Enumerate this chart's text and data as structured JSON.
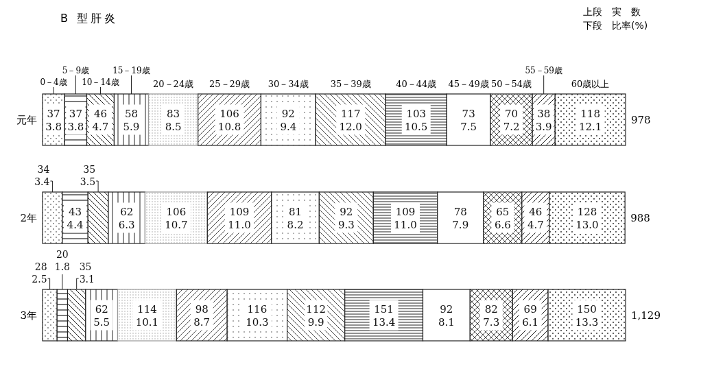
{
  "chart_data": {
    "type": "bar",
    "orientation": "horizontal",
    "stacked": true,
    "title": "B 型肝炎",
    "annotations": [
      "上段　実　数",
      "下段　比率(%)",
      "978",
      "988",
      "1,129"
    ],
    "categories": [
      "元年",
      "2年",
      "3年"
    ],
    "series": [
      {
        "name": "0－4歳",
        "color": "#222222",
        "values": [
          3.8,
          3.4,
          2.5
        ],
        "value_labels": [
          "37\n3.8",
          "34\n3.4",
          "28\n2.5"
        ]
      },
      {
        "name": "5－9歳",
        "color": "#222222",
        "values": [
          3.8,
          4.4,
          1.8
        ],
        "value_labels": [
          "37\n3.8",
          "43\n4.4",
          "20\n1.8"
        ]
      },
      {
        "name": "10－14歳",
        "color": "#222222",
        "values": [
          4.7,
          3.5,
          3.1
        ],
        "value_labels": [
          "46\n4.7",
          "35\n3.5",
          "35\n3.1"
        ]
      },
      {
        "name": "15－19歳",
        "color": "#222222",
        "values": [
          5.9,
          6.3,
          5.5
        ],
        "value_labels": [
          "58\n5.9",
          "62\n6.3",
          "62\n5.5"
        ]
      },
      {
        "name": "20－24歳",
        "color": "#999999",
        "values": [
          8.5,
          10.7,
          10.1
        ],
        "value_labels": [
          "83\n8.5",
          "106\n10.7",
          "114\n10.1"
        ]
      },
      {
        "name": "25－29歳",
        "color": "#222222",
        "values": [
          10.8,
          11.0,
          8.7
        ],
        "value_labels": [
          "106\n10.8",
          "109\n11.0",
          "98\n8.7"
        ]
      },
      {
        "name": "30－34歳",
        "color": "#222222",
        "values": [
          9.4,
          8.2,
          10.3
        ],
        "value_labels": [
          "92\n9.4",
          "81\n8.2",
          "116\n10.3"
        ]
      },
      {
        "name": "35－39歳",
        "color": "#222222",
        "values": [
          12.0,
          9.3,
          9.9
        ],
        "value_labels": [
          "117\n12.0",
          "92\n9.3",
          "112\n9.9"
        ]
      },
      {
        "name": "40－44歳",
        "color": "#222222",
        "values": [
          10.5,
          11.0,
          13.4
        ],
        "value_labels": [
          "103\n10.5",
          "109\n11.0",
          "151\n13.4"
        ]
      },
      {
        "name": "45－49歳",
        "color": "#222222",
        "values": [
          7.5,
          7.9,
          8.1
        ],
        "value_labels": [
          "73\n7.5",
          "78\n7.9",
          "92\n8.1"
        ]
      },
      {
        "name": "50－54歳",
        "color": "#222222",
        "values": [
          7.2,
          6.6,
          7.3
        ],
        "value_labels": [
          "70\n7.2",
          "65\n6.6",
          "82\n7.3"
        ]
      },
      {
        "name": "55－59歳",
        "color": "#222222",
        "values": [
          3.9,
          4.7,
          6.1
        ],
        "value_labels": [
          "38\n3.9",
          "46\n4.7",
          "69\n6.1"
        ]
      },
      {
        "name": "60歳以上",
        "color": "#222222",
        "values": [
          12.1,
          13.0,
          13.3
        ],
        "value_labels": [
          "118\n12.1",
          "128\n13.0",
          "150\n13.3"
        ]
      }
    ]
  }
}
